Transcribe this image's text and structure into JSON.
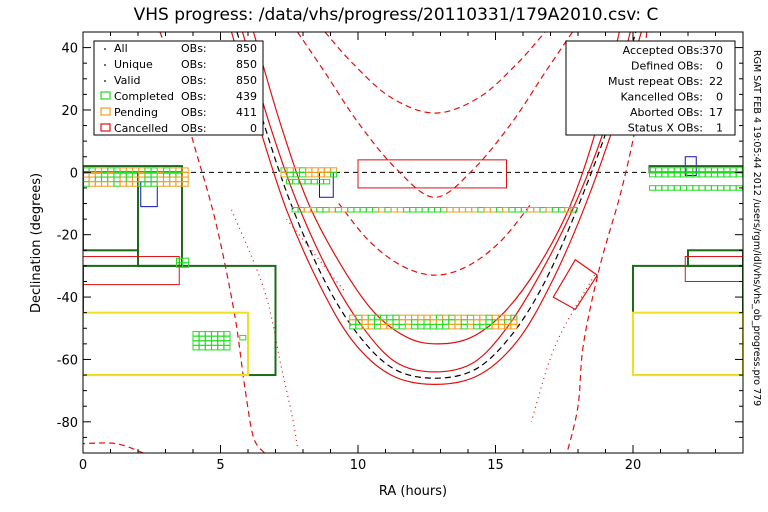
{
  "chart_data": {
    "type": "scatter",
    "title": "VHS progress: /data/vhs/progress/20110331/179A2010.csv: C",
    "xlabel": "RA (hours)",
    "ylabel": "Declination (degrees)",
    "xlim": [
      0,
      24
    ],
    "ylim": [
      -90,
      45
    ],
    "xticks": [
      0,
      5,
      10,
      15,
      20
    ],
    "yticks": [
      -80,
      -60,
      -40,
      -20,
      0,
      20,
      40
    ],
    "side_text": "RGM SAT FEB  4 19:05:44 2012 /users/rgm/idl/vhs/vhs_ob_progress.pro 779",
    "legend_left": [
      {
        "name": "All",
        "obs_label": "OBs:",
        "value": "850",
        "marker": "dot",
        "color": "#000000"
      },
      {
        "name": "Unique",
        "obs_label": "OBs:",
        "value": "850",
        "marker": "dot",
        "color": "#000000"
      },
      {
        "name": "Valid",
        "obs_label": "OBs:",
        "value": "850",
        "marker": "dot",
        "color": "#000000"
      },
      {
        "name": "Completed",
        "obs_label": "OBs:",
        "value": "439",
        "marker": "square",
        "color": "#22dd22"
      },
      {
        "name": "Pending",
        "obs_label": "OBs:",
        "value": "411",
        "marker": "square",
        "color": "#f0a020"
      },
      {
        "name": "Cancelled",
        "obs_label": "OBs:",
        "value": "0",
        "marker": "square",
        "color": "#e01010"
      }
    ],
    "legend_right": [
      {
        "label": "Accepted OBs:",
        "value": "370"
      },
      {
        "label": "Defined OBs:",
        "value": "0"
      },
      {
        "label": "Must repeat OBs:",
        "value": "22"
      },
      {
        "label": "Kancelled OBs:",
        "value": "0"
      },
      {
        "label": "Aborted OBs:",
        "value": "17"
      },
      {
        "label": "Status X OBs:",
        "value": "1"
      }
    ],
    "colors": {
      "completed": "#22dd22",
      "pending": "#f0a020",
      "cancelled_box": "#e01010",
      "survey_box": "#1a6b1a",
      "yellow_box": "#f0e020",
      "blue_box": "#1010c0",
      "ecliptic": "#e01010",
      "dark": "#000000"
    },
    "bands": [
      {
        "ra_from": 0.0,
        "ra_to": 3.9,
        "dec": -1.5,
        "rows": 4,
        "pattern": "mixed"
      },
      {
        "ra_from": 7.2,
        "ra_to": 9.4,
        "dec": 0.0,
        "rows": 2,
        "pattern": "mixed"
      },
      {
        "ra_from": 7.4,
        "ra_to": 9.2,
        "dec": -3.0,
        "rows": 1,
        "pattern": "completed"
      },
      {
        "ra_from": 7.6,
        "ra_to": 18.0,
        "dec": -12.0,
        "rows": 1,
        "pattern": "mixed"
      },
      {
        "ra_from": 3.4,
        "ra_to": 4.0,
        "dec": -29.0,
        "rows": 2,
        "pattern": "completed"
      },
      {
        "ra_from": 9.7,
        "ra_to": 16.0,
        "dec": -48.0,
        "rows": 3,
        "pattern": "mixed"
      },
      {
        "ra_from": 4.0,
        "ra_to": 5.4,
        "dec": -54.0,
        "rows": 4,
        "pattern": "completed"
      },
      {
        "ra_from": 5.7,
        "ra_to": 6.0,
        "dec": -53.0,
        "rows": 1,
        "pattern": "completed"
      },
      {
        "ra_from": 20.6,
        "ra_to": 24.0,
        "dec": 0.0,
        "rows": 2,
        "pattern": "completed"
      },
      {
        "ra_from": 20.6,
        "ra_to": 24.0,
        "dec": -5.0,
        "rows": 1,
        "pattern": "completed"
      }
    ],
    "boxes": [
      {
        "ra": [
          0.0,
          3.6
        ],
        "dec": [
          0.0,
          2.0
        ],
        "color": "survey_box",
        "w": 2
      },
      {
        "ra": [
          2.0,
          3.6
        ],
        "dec": [
          -30.0,
          0.0
        ],
        "color": "survey_box",
        "w": 2
      },
      {
        "ra": [
          0.0,
          2.0
        ],
        "dec": [
          -25.0,
          0.0
        ],
        "color": "survey_box",
        "w": 2
      },
      {
        "ra": [
          0.0,
          7.0
        ],
        "dec": [
          -65.0,
          -30.0
        ],
        "color": "survey_box",
        "w": 2
      },
      {
        "ra": [
          0.0,
          6.0
        ],
        "dec": [
          -65.0,
          -45.0
        ],
        "color": "yellow_box",
        "w": 2
      },
      {
        "ra": [
          0.0,
          3.5
        ],
        "dec": [
          -36.0,
          -27.0
        ],
        "color": "cancelled_box",
        "w": 1
      },
      {
        "ra": [
          2.1,
          2.7
        ],
        "dec": [
          -11.0,
          -3.0
        ],
        "color": "blue_box",
        "w": 1
      },
      {
        "ra": [
          8.6,
          9.1
        ],
        "dec": [
          -8.0,
          0.0
        ],
        "color": "blue_box",
        "w": 1
      },
      {
        "ra": [
          21.9,
          22.3
        ],
        "dec": [
          -1.0,
          5.0
        ],
        "color": "blue_box",
        "w": 1
      },
      {
        "ra": [
          10.0,
          15.4
        ],
        "dec": [
          -5.0,
          4.0
        ],
        "color": "cancelled_box",
        "w": 1
      },
      {
        "ra": [
          20.6,
          24.0
        ],
        "dec": [
          0.0,
          2.0
        ],
        "color": "survey_box",
        "w": 2
      },
      {
        "ra": [
          20.0,
          24.0
        ],
        "dec": [
          -65.0,
          -30.0
        ],
        "color": "survey_box",
        "w": 2
      },
      {
        "ra": [
          22.0,
          24.0
        ],
        "dec": [
          -30.0,
          -25.0
        ],
        "color": "survey_box",
        "w": 2
      },
      {
        "ra": [
          21.9,
          24.0
        ],
        "dec": [
          -35.0,
          -27.0
        ],
        "color": "cancelled_box",
        "w": 1
      },
      {
        "ra": [
          20.0,
          24.0
        ],
        "dec": [
          -65.0,
          -45.0
        ],
        "color": "yellow_box",
        "w": 2
      }
    ],
    "tilted_box": [
      [
        17.1,
        -40.0
      ],
      [
        17.9,
        -44.0
      ],
      [
        18.7,
        -33.0
      ],
      [
        17.9,
        -28.0
      ]
    ],
    "equator_line": {
      "dec": 0,
      "style": "dashed"
    },
    "curves": [
      {
        "name": "",
        "color": "ecliptic",
        "style": "solid",
        "points": [
          [
            6.2,
            45
          ],
          [
            7.2,
            15
          ],
          [
            8.2,
            -10
          ],
          [
            9.4,
            -30
          ],
          [
            10.6,
            -45
          ],
          [
            11.8,
            -53
          ],
          [
            12.9,
            -55
          ],
          [
            14.1,
            -53
          ],
          [
            15.3,
            -45
          ],
          [
            16.5,
            -31
          ],
          [
            17.7,
            -11
          ],
          [
            18.7,
            15
          ],
          [
            19.5,
            45
          ]
        ]
      },
      {
        "name": "",
        "color": "ecliptic",
        "style": "solid",
        "points": [
          [
            5.8,
            45
          ],
          [
            6.8,
            15
          ],
          [
            7.8,
            -10
          ],
          [
            9.0,
            -33
          ],
          [
            10.2,
            -50
          ],
          [
            11.4,
            -61
          ],
          [
            12.8,
            -64
          ],
          [
            14.2,
            -61
          ],
          [
            15.4,
            -50
          ],
          [
            16.6,
            -33
          ],
          [
            17.9,
            -10
          ],
          [
            19.0,
            15
          ],
          [
            19.9,
            45
          ]
        ]
      },
      {
        "name": "",
        "color": "ecliptic",
        "style": "solid",
        "points": [
          [
            5.4,
            45
          ],
          [
            6.4,
            15
          ],
          [
            7.4,
            -12
          ],
          [
            8.6,
            -36
          ],
          [
            9.8,
            -54
          ],
          [
            11.2,
            -65
          ],
          [
            12.8,
            -68
          ],
          [
            14.4,
            -65
          ],
          [
            15.8,
            -54
          ],
          [
            17.0,
            -36
          ],
          [
            18.2,
            -12
          ],
          [
            19.3,
            15
          ],
          [
            20.3,
            45
          ]
        ]
      },
      {
        "name": "",
        "color": "dark",
        "style": "dashed",
        "points": [
          [
            5.6,
            45
          ],
          [
            6.6,
            15
          ],
          [
            7.6,
            -11
          ],
          [
            8.8,
            -35
          ],
          [
            10.0,
            -52
          ],
          [
            11.3,
            -63
          ],
          [
            12.8,
            -66
          ],
          [
            14.3,
            -63
          ],
          [
            15.6,
            -52
          ],
          [
            16.8,
            -35
          ],
          [
            18.0,
            -11
          ],
          [
            19.1,
            15
          ],
          [
            20.1,
            45
          ]
        ]
      },
      {
        "name": "",
        "color": "ecliptic",
        "style": "dashed",
        "points": [
          [
            2.8,
            45
          ],
          [
            3.4,
            30
          ],
          [
            4.0,
            10
          ],
          [
            4.8,
            -15
          ],
          [
            5.5,
            -45
          ],
          [
            5.9,
            -70
          ],
          [
            6.2,
            -85
          ],
          [
            6.6,
            -90
          ]
        ]
      },
      {
        "name": "",
        "color": "ecliptic",
        "style": "dashed",
        "points": [
          [
            2.2,
            -90
          ],
          [
            1.2,
            -87
          ],
          [
            0.0,
            -87
          ]
        ]
      },
      {
        "name": "",
        "color": "ecliptic",
        "style": "dashed",
        "points": [
          [
            7.8,
            45
          ],
          [
            8.8,
            32
          ],
          [
            10.0,
            16
          ],
          [
            11.4,
            1
          ],
          [
            12.8,
            -8
          ],
          [
            14.2,
            1
          ],
          [
            15.6,
            16
          ],
          [
            16.8,
            32
          ],
          [
            17.8,
            45
          ]
        ]
      },
      {
        "name": "",
        "color": "ecliptic",
        "style": "dashed",
        "points": [
          [
            8.8,
            45
          ],
          [
            9.8,
            35
          ],
          [
            11.2,
            24
          ],
          [
            12.8,
            19
          ],
          [
            14.4,
            24
          ],
          [
            15.8,
            35
          ],
          [
            16.8,
            45
          ]
        ]
      },
      {
        "name": "",
        "color": "ecliptic",
        "style": "dashed",
        "points": [
          [
            9.3,
            -10
          ],
          [
            10.4,
            -22
          ],
          [
            11.6,
            -30
          ],
          [
            12.8,
            -33
          ],
          [
            14.0,
            -30
          ],
          [
            15.2,
            -22
          ],
          [
            16.3,
            -10
          ]
        ]
      },
      {
        "name": "",
        "color": "ecliptic",
        "style": "dashed",
        "points": [
          [
            20.5,
            45
          ],
          [
            20.2,
            20
          ],
          [
            19.6,
            -5
          ],
          [
            18.8,
            -30
          ],
          [
            18.2,
            -55
          ],
          [
            18.0,
            -75
          ],
          [
            17.6,
            -90
          ]
        ]
      },
      {
        "name": "",
        "color": "ecliptic",
        "style": "dotted",
        "points": [
          [
            5.4,
            -12
          ],
          [
            6.6,
            -38
          ],
          [
            7.2,
            -62
          ],
          [
            7.6,
            -78
          ],
          [
            7.8,
            -88
          ]
        ]
      },
      {
        "name": "",
        "color": "ecliptic",
        "style": "dotted",
        "points": [
          [
            7.4,
            -15
          ],
          [
            8.4,
            -26
          ],
          [
            9.5,
            -38
          ]
        ]
      },
      {
        "name": "",
        "color": "ecliptic",
        "style": "dotted",
        "points": [
          [
            18.6,
            -33
          ],
          [
            17.2,
            -55
          ],
          [
            16.3,
            -80
          ]
        ]
      }
    ]
  }
}
